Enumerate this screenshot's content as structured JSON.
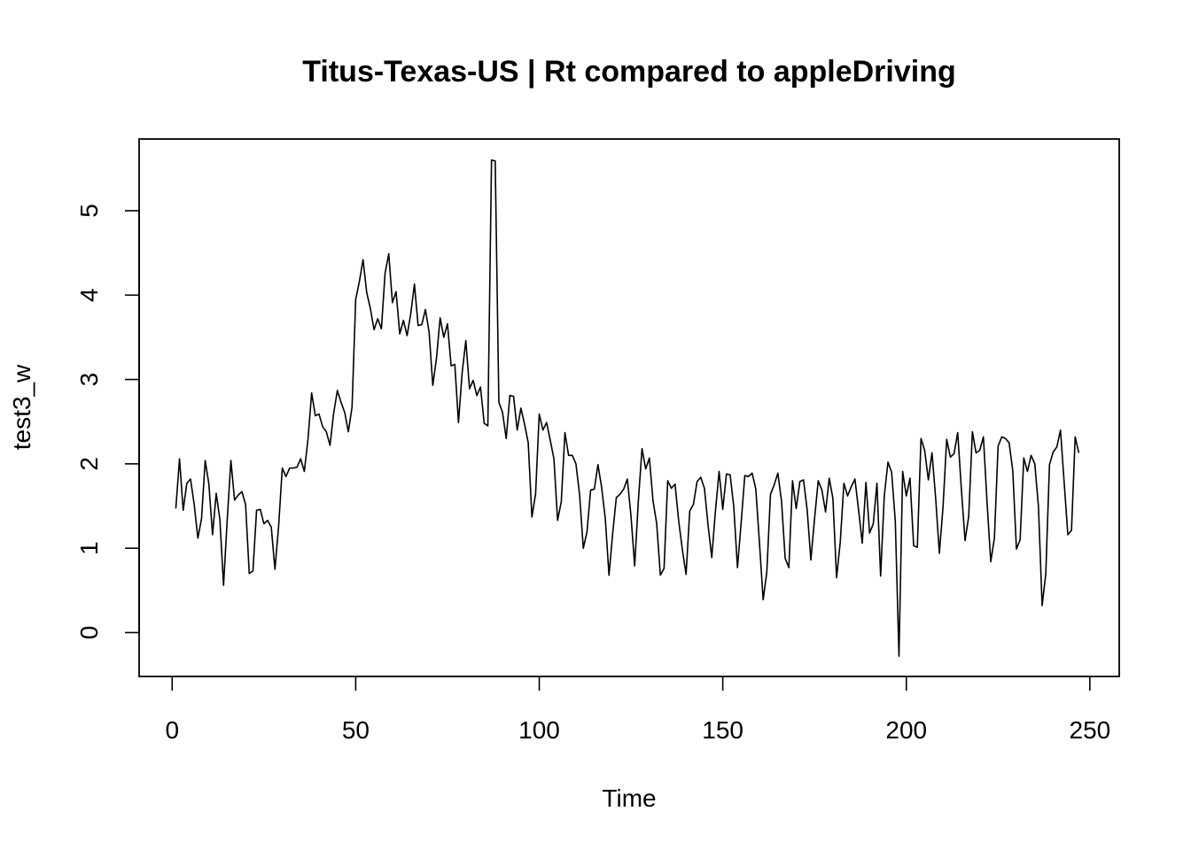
{
  "chart_data": {
    "type": "line",
    "title": "Titus-Texas-US | Rt compared to appleDriving",
    "xlabel": "Time",
    "ylabel": "test3_w",
    "xlim": [
      -9,
      258
    ],
    "ylim": [
      -0.52,
      5.85
    ],
    "x_ticks": [
      0,
      50,
      100,
      150,
      200,
      250
    ],
    "y_ticks": [
      0,
      1,
      2,
      3,
      4,
      5
    ],
    "grid": false,
    "x_start": 1,
    "series": [
      {
        "values": [
          1.47,
          2.06,
          1.45,
          1.77,
          1.82,
          1.52,
          1.12,
          1.35,
          2.04,
          1.76,
          1.16,
          1.65,
          1.34,
          0.56,
          1.34,
          2.04,
          1.57,
          1.63,
          1.67,
          1.52,
          0.7,
          0.73,
          1.45,
          1.46,
          1.29,
          1.33,
          1.25,
          0.75,
          1.26,
          1.95,
          1.85,
          1.95,
          1.95,
          1.96,
          2.06,
          1.91,
          2.29,
          2.84,
          2.57,
          2.59,
          2.44,
          2.38,
          2.22,
          2.6,
          2.87,
          2.73,
          2.61,
          2.38,
          2.67,
          3.95,
          4.16,
          4.42,
          4.03,
          3.84,
          3.59,
          3.72,
          3.6,
          4.26,
          4.49,
          3.91,
          4.04,
          3.54,
          3.7,
          3.52,
          3.78,
          4.13,
          3.64,
          3.65,
          3.83,
          3.56,
          2.93,
          3.25,
          3.73,
          3.5,
          3.66,
          3.16,
          3.18,
          2.49,
          3.08,
          3.46,
          2.89,
          2.99,
          2.81,
          2.91,
          2.48,
          2.45,
          5.6,
          5.59,
          2.73,
          2.61,
          2.3,
          2.81,
          2.8,
          2.4,
          2.66,
          2.47,
          2.25,
          1.37,
          1.64,
          2.59,
          2.4,
          2.49,
          2.28,
          2.06,
          1.33,
          1.55,
          2.37,
          2.1,
          2.1,
          2.0,
          1.63,
          1.0,
          1.19,
          1.69,
          1.7,
          1.99,
          1.72,
          1.35,
          0.68,
          1.17,
          1.6,
          1.64,
          1.7,
          1.82,
          1.38,
          0.79,
          1.56,
          2.18,
          1.94,
          2.07,
          1.56,
          1.29,
          0.68,
          0.76,
          1.8,
          1.71,
          1.76,
          1.32,
          0.98,
          0.69,
          1.44,
          1.52,
          1.79,
          1.84,
          1.71,
          1.27,
          0.89,
          1.44,
          1.91,
          1.46,
          1.88,
          1.87,
          1.49,
          0.77,
          1.3,
          1.86,
          1.85,
          1.89,
          1.7,
          1.06,
          0.39,
          0.72,
          1.64,
          1.75,
          1.89,
          1.56,
          0.88,
          0.77,
          1.8,
          1.47,
          1.79,
          1.81,
          1.45,
          0.86,
          1.35,
          1.8,
          1.69,
          1.43,
          1.83,
          1.59,
          0.65,
          1.07,
          1.77,
          1.62,
          1.73,
          1.82,
          1.45,
          1.06,
          1.78,
          1.18,
          1.29,
          1.77,
          0.67,
          1.62,
          2.02,
          1.9,
          1.32,
          -0.28,
          1.91,
          1.62,
          1.83,
          1.03,
          1.01,
          2.3,
          2.16,
          1.81,
          2.13,
          1.59,
          0.94,
          1.49,
          2.29,
          2.08,
          2.12,
          2.37,
          1.7,
          1.09,
          1.38,
          2.38,
          2.13,
          2.16,
          2.32,
          1.54,
          0.84,
          1.12,
          2.21,
          2.32,
          2.3,
          2.25,
          1.92,
          0.99,
          1.1,
          2.07,
          1.91,
          2.1,
          2.0,
          1.49,
          0.32,
          0.7,
          1.99,
          2.14,
          2.2,
          2.4,
          1.78,
          1.16,
          1.21,
          2.32,
          2.13
        ]
      }
    ]
  }
}
